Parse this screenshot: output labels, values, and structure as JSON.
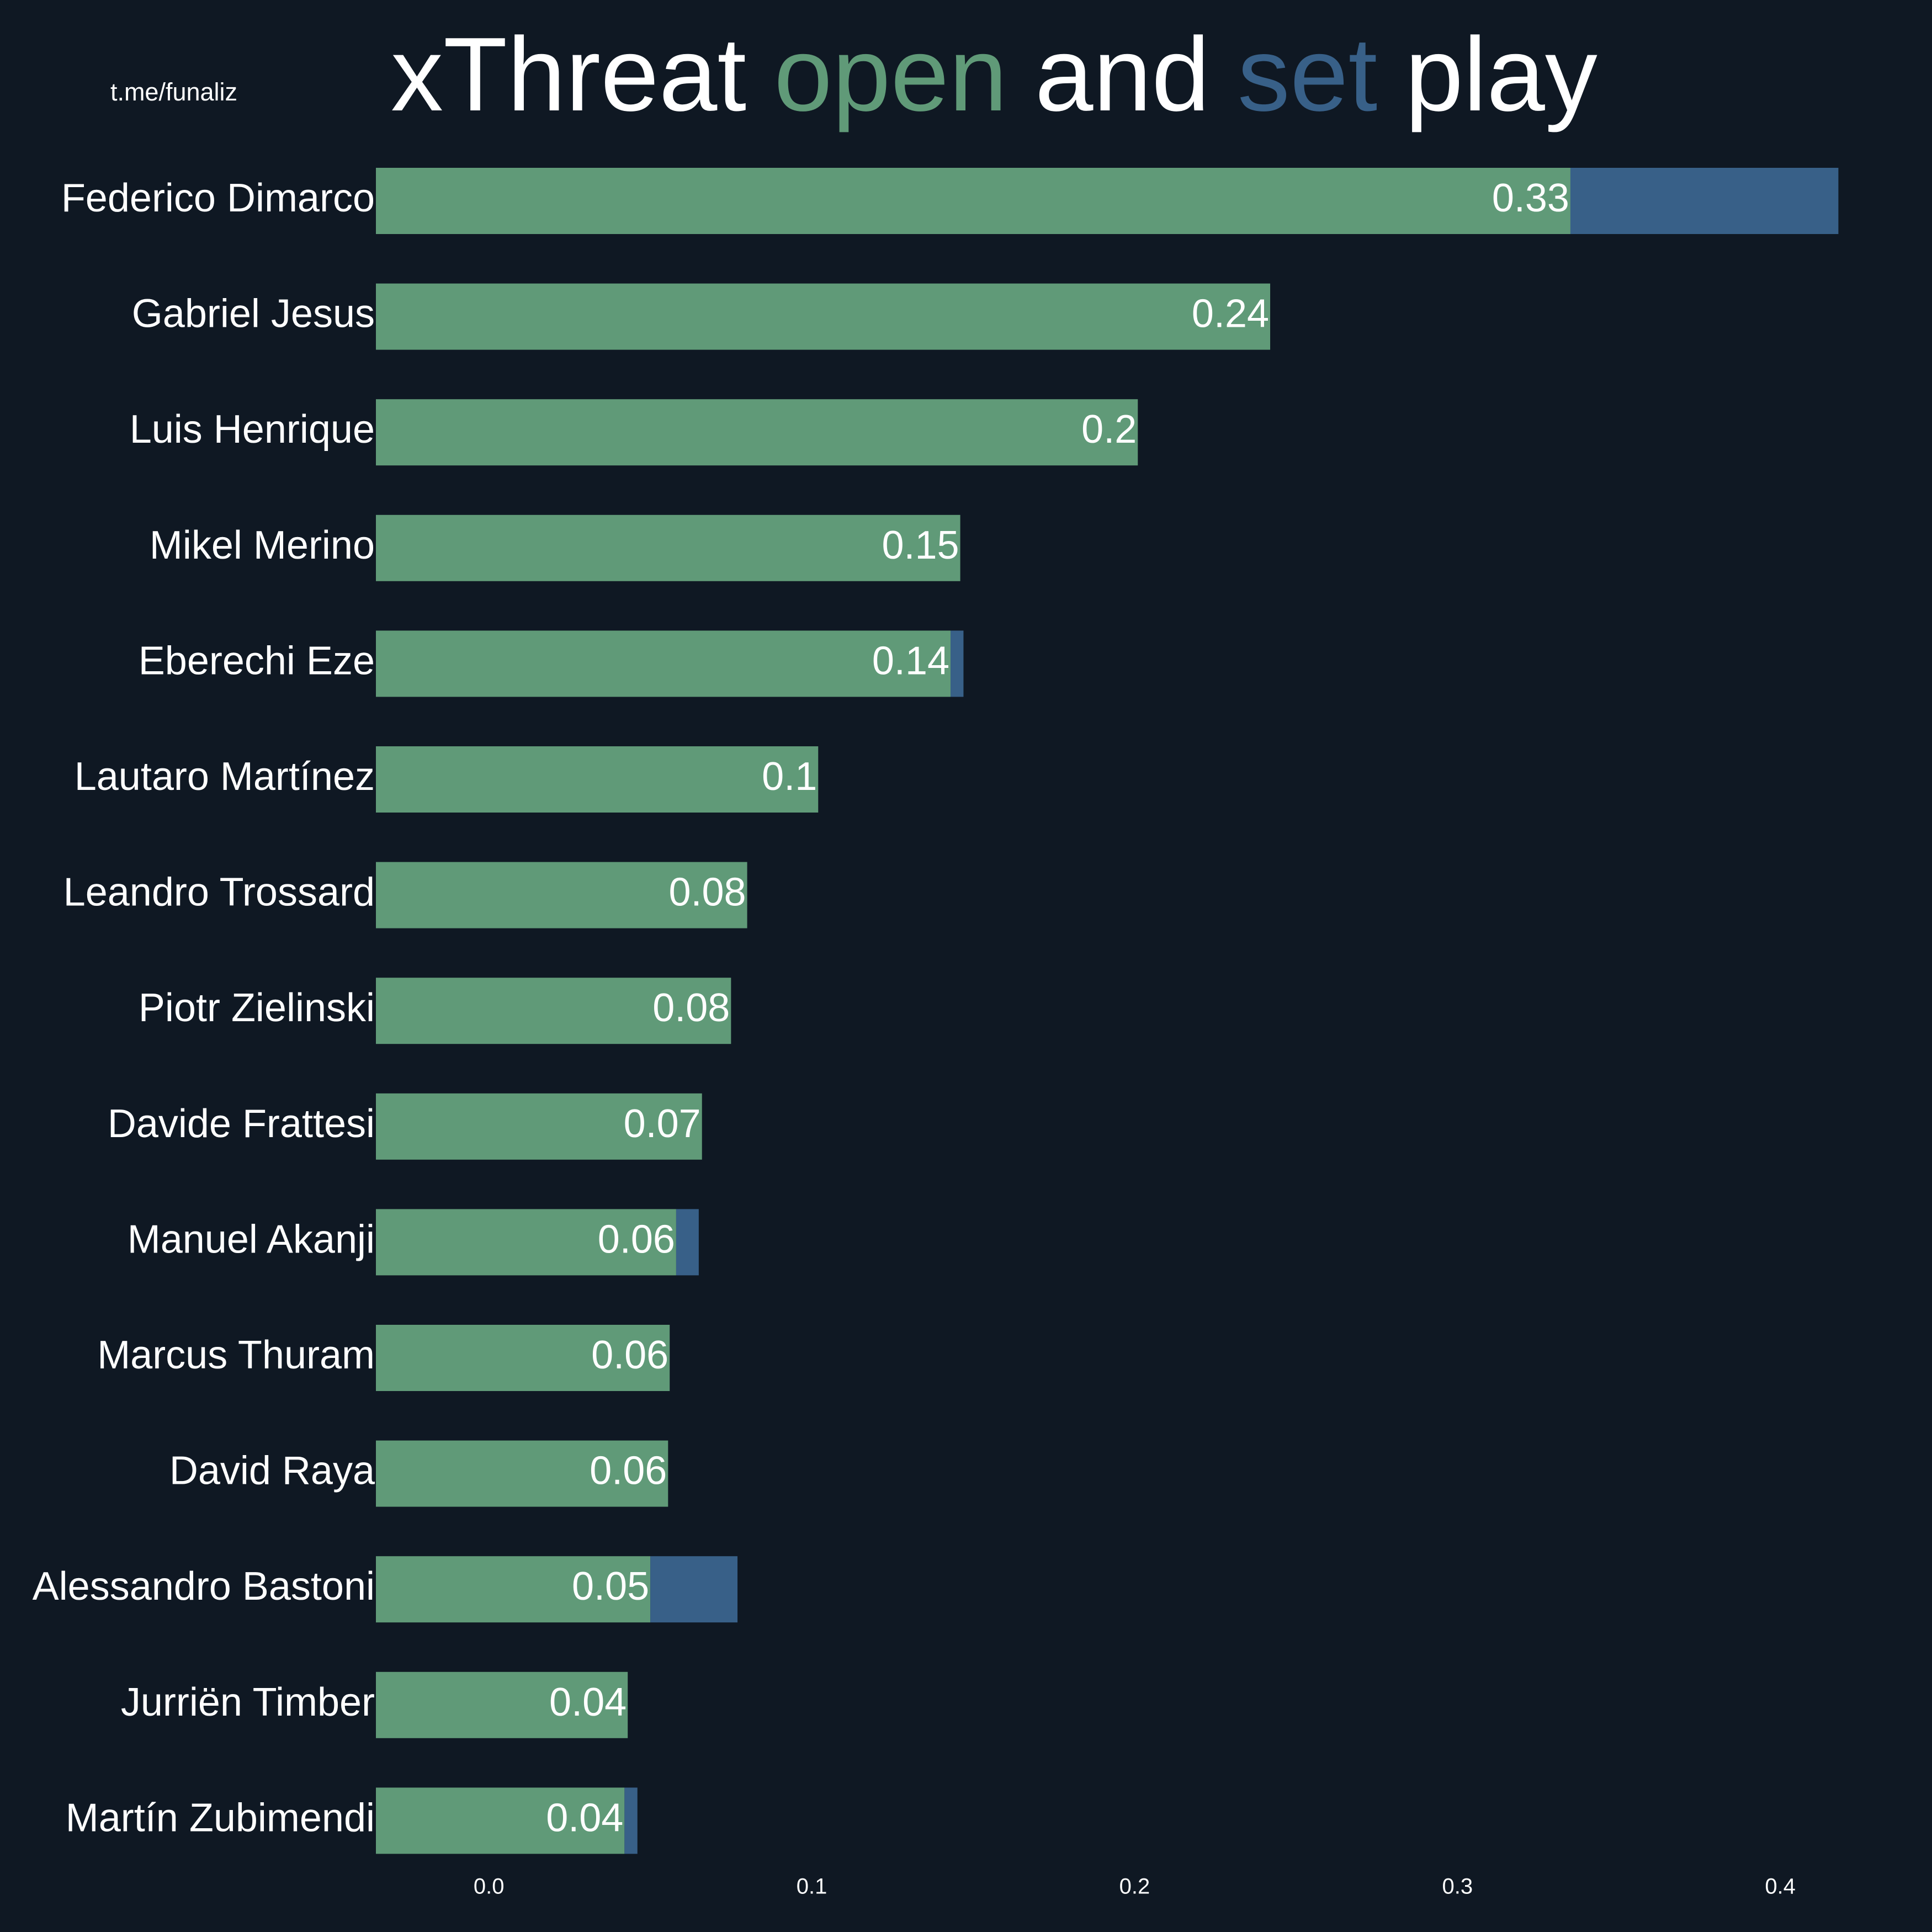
{
  "chart_data": {
    "type": "stacked_barh",
    "title_prefix": "xThreat",
    "title_middle": "and",
    "title_suffix": "play",
    "source": "t.me/funaliz",
    "categories": [
      "Federico Dimarco",
      "Gabriel Jesus",
      "Luis Henrique",
      "Mikel Merino",
      "Eberechi Eze",
      "Lautaro Martínez",
      "Leandro Trossard",
      "Piotr Zielinski",
      "Davide Frattesi",
      "Manuel Akanji",
      "Marcus Thuram",
      "David Raya",
      "Alessandro Bastoni",
      "Jurriën Timber",
      "Martín Zubimendi"
    ],
    "series": [
      {
        "name": "open",
        "color": "#609a78",
        "values": [
          0.335,
          0.242,
          0.201,
          0.146,
          0.143,
          0.102,
          0.08,
          0.075,
          0.066,
          0.058,
          0.056,
          0.0555,
          0.05,
          0.043,
          0.042
        ],
        "value_labels": [
          "0.33",
          "0.24",
          "0.2",
          "0.15",
          "0.14",
          "0.1",
          "0.08",
          "0.08",
          "0.07",
          "0.06",
          "0.06",
          "0.06",
          "0.05",
          "0.04",
          "0.04"
        ]
      },
      {
        "name": "set",
        "color": "#386088",
        "values": [
          0.083,
          0,
          0,
          0,
          0.004,
          0,
          0,
          0,
          0,
          0.007,
          0,
          0,
          0.027,
          0,
          0.004
        ]
      }
    ],
    "xlim": [
      -0.035,
      0.447
    ],
    "xticks": [
      {
        "value": 0,
        "label": "0.0"
      },
      0.1,
      0.2,
      0.3,
      0.4
    ],
    "grid": false
  }
}
